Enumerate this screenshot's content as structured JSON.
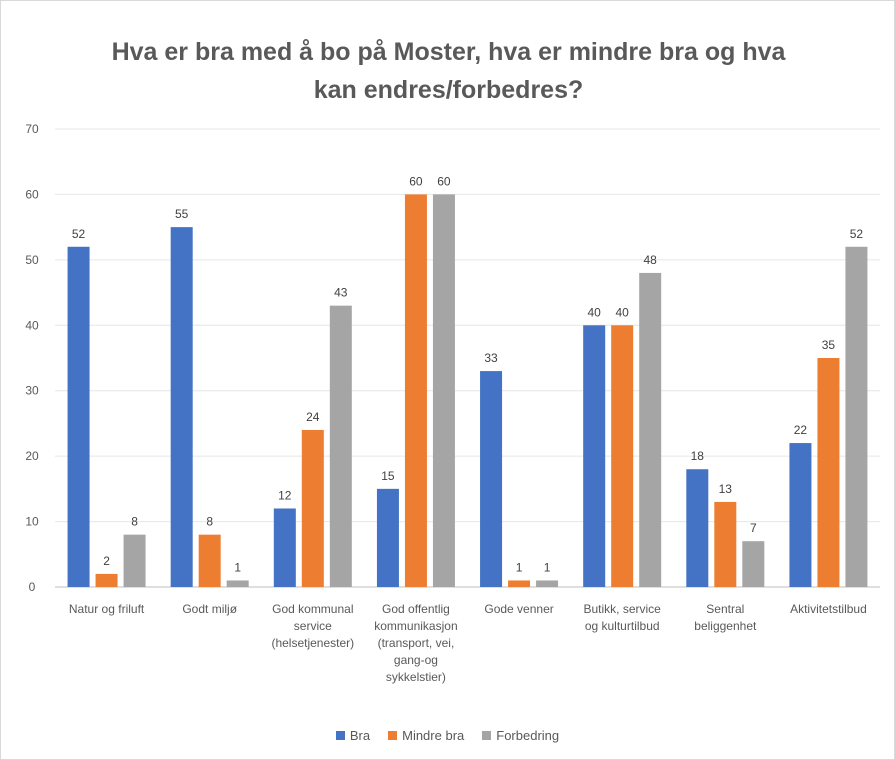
{
  "chart_data": {
    "type": "bar",
    "title_lines": [
      "Hva er bra med å bo på Moster, hva er mindre bra og hva",
      "kan endres/forbedres?"
    ],
    "categories": [
      [
        "Natur og friluft"
      ],
      [
        "Godt miljø"
      ],
      [
        "God kommunal",
        "service",
        "(helsetjenester)"
      ],
      [
        "God offentlig",
        "kommunikasjon",
        "(transport, vei,",
        "gang-og",
        "sykkelstier)"
      ],
      [
        "Gode venner"
      ],
      [
        "Butikk, service",
        "og kulturtilbud"
      ],
      [
        "Sentral",
        "beliggenhet"
      ],
      [
        "Aktivitetstilbud"
      ]
    ],
    "series": [
      {
        "name": "Bra",
        "color": "#4472c4",
        "values": [
          52,
          55,
          12,
          15,
          33,
          40,
          18,
          22
        ]
      },
      {
        "name": "Mindre bra",
        "color": "#ed7d31",
        "values": [
          2,
          8,
          24,
          60,
          1,
          40,
          13,
          35
        ]
      },
      {
        "name": "Forbedring",
        "color": "#a5a5a5",
        "values": [
          8,
          1,
          43,
          60,
          1,
          48,
          7,
          52
        ]
      }
    ],
    "ylim": [
      0,
      70
    ],
    "yticks": [
      0,
      10,
      20,
      30,
      40,
      50,
      60,
      70
    ],
    "grid": true,
    "legend": "bottom"
  }
}
